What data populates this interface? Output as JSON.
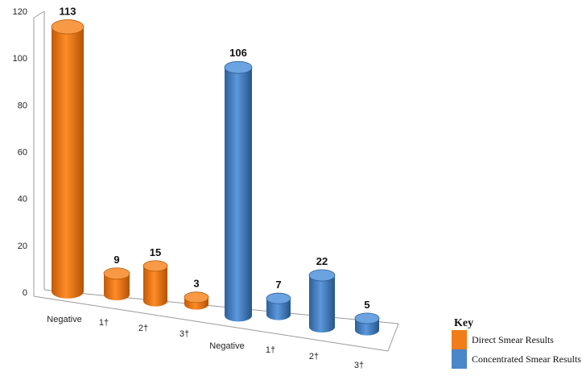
{
  "chart_data": {
    "type": "bar",
    "title": "",
    "xlabel": "",
    "ylabel": "",
    "ylim": [
      0,
      120
    ],
    "yticks": [
      0,
      20,
      40,
      60,
      80,
      100,
      120
    ],
    "legend_title": "Key",
    "legend_position": "bottom-right",
    "series": [
      {
        "name": "Direct Smear Results",
        "color": "#f07d1a",
        "categories": [
          "Negative",
          "1†",
          "2†",
          "3†"
        ],
        "values": [
          113,
          9,
          15,
          3
        ]
      },
      {
        "name": "Concentrated Smear Results",
        "color": "#4a86c8",
        "categories": [
          "Negative",
          "1†",
          "2†",
          "3†"
        ],
        "values": [
          106,
          7,
          22,
          5
        ]
      }
    ]
  }
}
